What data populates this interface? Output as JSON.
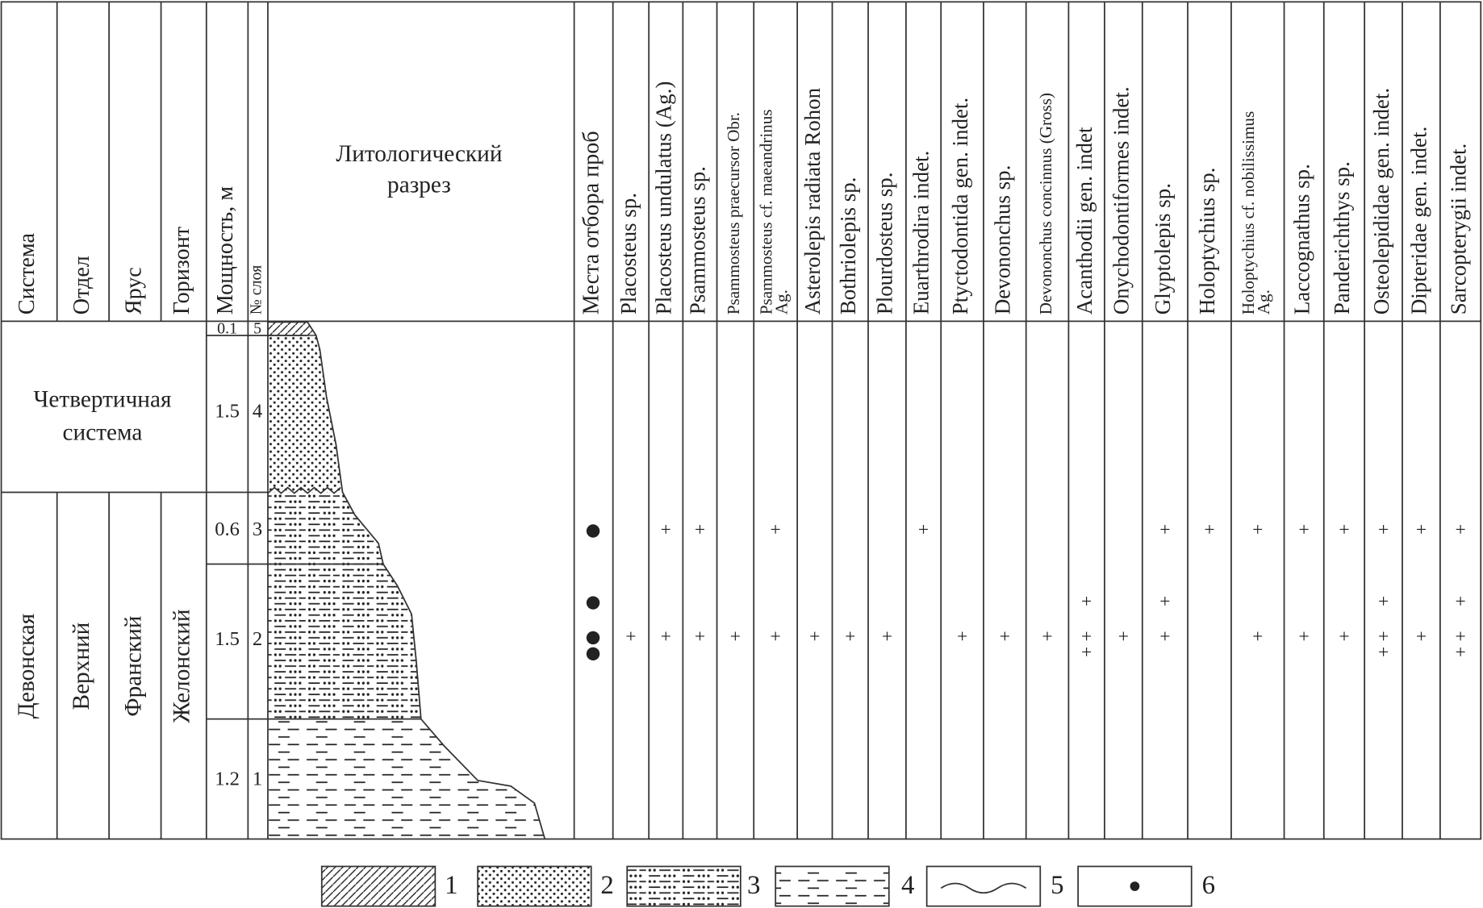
{
  "columns": [
    "Система",
    "Отдел",
    "Ярус",
    "Горизонт",
    "Мощность, м",
    "№ слоя"
  ],
  "lithology_title": [
    "Литологический",
    "разрез"
  ],
  "samples_title": "Места отбора проб",
  "taxa": [
    [
      "Placosteus sp."
    ],
    [
      "Placosteus undulatus (Ag.)"
    ],
    [
      "Psammosteus sp."
    ],
    [
      "Psammosteus praecursor Obr."
    ],
    [
      "Psammosteus cf. maeandrinus",
      "Ag."
    ],
    [
      "Asterolepis radiata Rohon"
    ],
    [
      "Bothriolepis sp."
    ],
    [
      "Plourdosteus sp."
    ],
    [
      "Euarthrodira indet."
    ],
    [
      "Ptyctodontida gen. indet."
    ],
    [
      "Devononchus sp."
    ],
    [
      "Devononchus concinnus (Gross)"
    ],
    [
      "Acanthodii gen. indet"
    ],
    [
      "Onychodontiformes indet."
    ],
    [
      "Glyptolepis sp."
    ],
    [
      "Holoptychius sp."
    ],
    [
      "Holoptychius cf. nobilissimus",
      "Ag."
    ],
    [
      "Laccognathus sp."
    ],
    [
      "Panderichthys sp."
    ],
    [
      "Osteolepididae gen. indet."
    ],
    [
      "Dipteridae gen. indet."
    ],
    [
      "Sarcopterygii indet."
    ]
  ],
  "quaternary": [
    "Четвертичная",
    "система"
  ],
  "devonian": [
    "Девонская",
    "Верхний",
    "Франский",
    "Желонский"
  ],
  "layers": [
    {
      "thickness": 0.1,
      "number": 5
    },
    {
      "thickness": 1.5,
      "number": 4
    },
    {
      "thickness": 0.6,
      "number": 3
    },
    {
      "thickness": 1.5,
      "number": 2
    },
    {
      "thickness": 1.2,
      "number": 1
    }
  ],
  "occurrences": [
    [
      null,
      "+",
      "+",
      null,
      "+",
      null,
      null,
      null,
      "+",
      null,
      null,
      null,
      null,
      null,
      "+",
      "+",
      "+",
      "+",
      "+",
      "+",
      "+",
      "+"
    ],
    [
      null,
      null,
      null,
      null,
      null,
      null,
      null,
      null,
      null,
      null,
      null,
      null,
      "+",
      null,
      "+",
      null,
      null,
      null,
      null,
      "+",
      null,
      "+"
    ],
    [
      "+",
      "+",
      "+",
      "+",
      "+",
      "+",
      "+",
      "+",
      null,
      "+",
      "+",
      "+",
      "+",
      "+",
      "+",
      null,
      "+",
      "+",
      "+",
      "+",
      "+",
      "+"
    ],
    [
      null,
      null,
      null,
      null,
      null,
      null,
      null,
      null,
      null,
      null,
      null,
      null,
      "+",
      null,
      null,
      null,
      null,
      null,
      null,
      "+",
      null,
      "+"
    ]
  ],
  "legend": [
    1,
    2,
    3,
    4,
    5,
    6
  ]
}
